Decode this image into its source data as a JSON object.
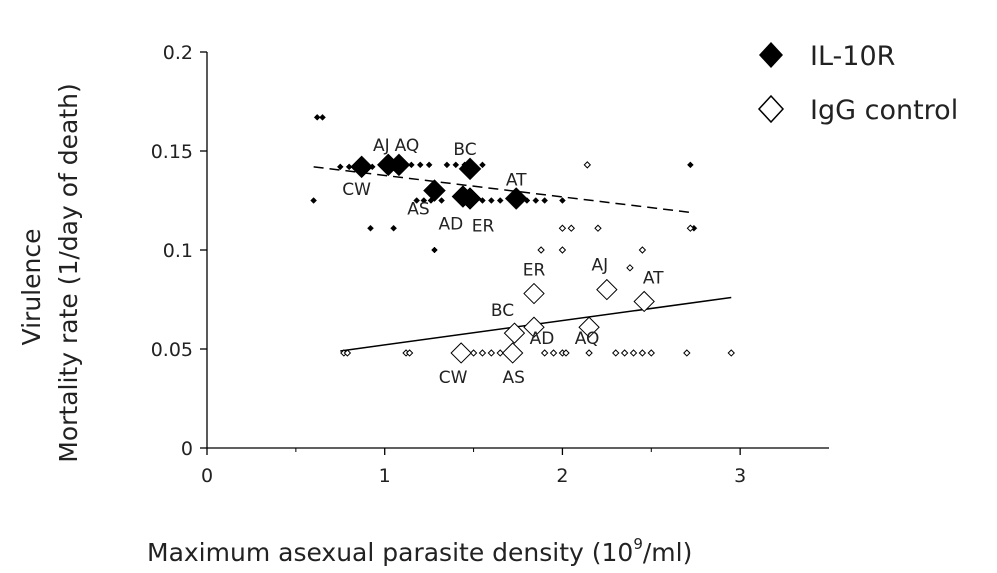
{
  "chart_data": {
    "type": "scatter",
    "xlabel": "Maximum asexual parasite density (10",
    "xlabel_sup": "9",
    "xlabel_tail": "/ml)",
    "ylabel_line1": "Virulence",
    "ylabel_line2": "Mortality rate (1/day of death)",
    "xlim": [
      0,
      3.5
    ],
    "ylim": [
      0,
      0.2
    ],
    "xticks": [
      0,
      1,
      2,
      3
    ],
    "xtick_labels": [
      "0",
      "1",
      "2",
      "3"
    ],
    "yticks": [
      0,
      0.05,
      0.1,
      0.15,
      0.2
    ],
    "ytick_labels": [
      "0",
      "0.05",
      "0.1",
      "0.15",
      "0.2"
    ],
    "legend_position": "top-right",
    "series": [
      {
        "name": "IL-10R",
        "marker": "filled-diamond",
        "color": "#000000",
        "points": [
          [
            0.6,
            0.125
          ],
          [
            0.62,
            0.167
          ],
          [
            0.65,
            0.167
          ],
          [
            0.75,
            0.142
          ],
          [
            0.8,
            0.142
          ],
          [
            0.85,
            0.142
          ],
          [
            0.93,
            0.142
          ],
          [
            0.92,
            0.111
          ],
          [
            1.0,
            0.143
          ],
          [
            1.1,
            0.143
          ],
          [
            1.15,
            0.143
          ],
          [
            1.2,
            0.143
          ],
          [
            1.25,
            0.143
          ],
          [
            1.05,
            0.111
          ],
          [
            1.18,
            0.125
          ],
          [
            1.22,
            0.125
          ],
          [
            1.26,
            0.125
          ],
          [
            1.28,
            0.1
          ],
          [
            1.32,
            0.125
          ],
          [
            1.35,
            0.143
          ],
          [
            1.4,
            0.143
          ],
          [
            1.45,
            0.143
          ],
          [
            1.5,
            0.125
          ],
          [
            1.55,
            0.125
          ],
          [
            1.6,
            0.125
          ],
          [
            1.55,
            0.143
          ],
          [
            1.65,
            0.125
          ],
          [
            1.8,
            0.125
          ],
          [
            1.85,
            0.125
          ],
          [
            1.9,
            0.125
          ],
          [
            2.0,
            0.125
          ],
          [
            2.72,
            0.143
          ],
          [
            2.74,
            0.111
          ]
        ],
        "strain_points": [
          {
            "label": "CW",
            "x": 0.87,
            "y": 0.142
          },
          {
            "label": "AJ",
            "x": 1.02,
            "y": 0.143
          },
          {
            "label": "AQ",
            "x": 1.08,
            "y": 0.143
          },
          {
            "label": "BC",
            "x": 1.48,
            "y": 0.141
          },
          {
            "label": "AS",
            "x": 1.28,
            "y": 0.13
          },
          {
            "label": "AD",
            "x": 1.44,
            "y": 0.127
          },
          {
            "label": "ER",
            "x": 1.48,
            "y": 0.126
          },
          {
            "label": "AT",
            "x": 1.74,
            "y": 0.126
          }
        ],
        "trend": {
          "style": "dashed",
          "x": [
            0.6,
            2.72
          ],
          "y": [
            0.142,
            0.119
          ]
        }
      },
      {
        "name": "IgG control",
        "marker": "open-diamond",
        "color": "#000000",
        "points": [
          [
            0.77,
            0.048
          ],
          [
            0.79,
            0.048
          ],
          [
            1.12,
            0.048
          ],
          [
            1.14,
            0.048
          ],
          [
            1.5,
            0.048
          ],
          [
            1.55,
            0.048
          ],
          [
            1.6,
            0.048
          ],
          [
            1.65,
            0.048
          ],
          [
            1.75,
            0.048
          ],
          [
            1.9,
            0.048
          ],
          [
            1.95,
            0.048
          ],
          [
            2.0,
            0.048
          ],
          [
            2.02,
            0.048
          ],
          [
            2.15,
            0.048
          ],
          [
            2.3,
            0.048
          ],
          [
            2.35,
            0.048
          ],
          [
            2.4,
            0.048
          ],
          [
            2.45,
            0.048
          ],
          [
            2.5,
            0.048
          ],
          [
            2.7,
            0.048
          ],
          [
            2.95,
            0.048
          ],
          [
            1.88,
            0.1
          ],
          [
            2.0,
            0.1
          ],
          [
            2.0,
            0.111
          ],
          [
            2.05,
            0.111
          ],
          [
            2.2,
            0.111
          ],
          [
            2.14,
            0.143
          ],
          [
            2.38,
            0.091
          ],
          [
            2.45,
            0.1
          ],
          [
            2.72,
            0.111
          ]
        ],
        "strain_points": [
          {
            "label": "CW",
            "x": 1.43,
            "y": 0.048
          },
          {
            "label": "AS",
            "x": 1.72,
            "y": 0.048
          },
          {
            "label": "BC",
            "x": 1.73,
            "y": 0.058
          },
          {
            "label": "AD",
            "x": 1.84,
            "y": 0.061
          },
          {
            "label": "ER",
            "x": 1.84,
            "y": 0.078
          },
          {
            "label": "AQ",
            "x": 2.15,
            "y": 0.061
          },
          {
            "label": "AJ",
            "x": 2.25,
            "y": 0.08
          },
          {
            "label": "AT",
            "x": 2.46,
            "y": 0.074
          }
        ],
        "trend": {
          "style": "solid",
          "x": [
            0.75,
            2.95
          ],
          "y": [
            0.049,
            0.076
          ]
        }
      }
    ]
  }
}
